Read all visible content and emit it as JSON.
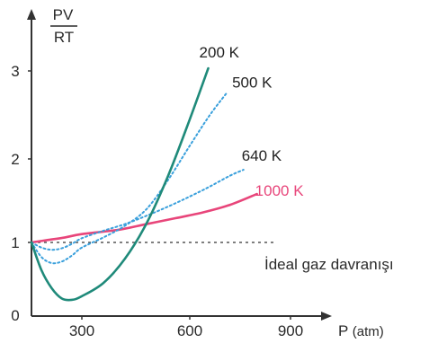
{
  "chart_data": {
    "type": "line",
    "y_label_numerator": "PV",
    "y_label_denominator": "RT",
    "xlabel_prefix": "P",
    "xlabel_unit": "(atm)",
    "xlim": [
      0,
      900
    ],
    "ylim": [
      0,
      3.5
    ],
    "x_ticks": [
      0,
      300,
      600,
      900
    ],
    "x_tick_labels": [
      "300",
      "600",
      "900"
    ],
    "y_ticks": [
      1,
      2,
      3
    ],
    "y_tick_labels": [
      "0",
      "1",
      "2",
      "3"
    ],
    "ideal_line": {
      "y": 1,
      "label": "İdeal gaz davranışı"
    },
    "series": [
      {
        "name": "200 K",
        "color": "#1f8a7a",
        "style": "solid",
        "points": [
          [
            0,
            1.0
          ],
          [
            60,
            0.62
          ],
          [
            120,
            0.38
          ],
          [
            180,
            0.24
          ],
          [
            240,
            0.22
          ],
          [
            300,
            0.27
          ],
          [
            360,
            0.45
          ],
          [
            420,
            0.78
          ],
          [
            480,
            1.23
          ],
          [
            540,
            1.8
          ],
          [
            600,
            2.45
          ],
          [
            655,
            3.03
          ]
        ]
      },
      {
        "name": "500 K",
        "color": "#3aa0dc",
        "style": "dotted",
        "points": [
          [
            0,
            1.0
          ],
          [
            60,
            0.8
          ],
          [
            120,
            0.72
          ],
          [
            180,
            0.74
          ],
          [
            240,
            0.82
          ],
          [
            300,
            0.93
          ],
          [
            360,
            1.06
          ],
          [
            420,
            1.2
          ],
          [
            480,
            1.4
          ],
          [
            540,
            1.75
          ],
          [
            600,
            2.15
          ],
          [
            660,
            2.5
          ],
          [
            710,
            2.75
          ]
        ]
      },
      {
        "name": "640 K",
        "color": "#3aa0dc",
        "style": "dotted",
        "points": [
          [
            0,
            1.0
          ],
          [
            60,
            0.93
          ],
          [
            120,
            0.9
          ],
          [
            180,
            0.92
          ],
          [
            240,
            0.98
          ],
          [
            300,
            1.05
          ],
          [
            360,
            1.14
          ],
          [
            420,
            1.22
          ],
          [
            480,
            1.32
          ],
          [
            540,
            1.43
          ],
          [
            600,
            1.55
          ],
          [
            660,
            1.67
          ],
          [
            720,
            1.8
          ],
          [
            760,
            1.87
          ]
        ]
      },
      {
        "name": "1000 K",
        "color": "#e8457a",
        "style": "solid",
        "points": [
          [
            0,
            1.0
          ],
          [
            100,
            1.03
          ],
          [
            200,
            1.06
          ],
          [
            300,
            1.1
          ],
          [
            400,
            1.15
          ],
          [
            480,
            1.22
          ],
          [
            560,
            1.29
          ],
          [
            640,
            1.36
          ],
          [
            720,
            1.45
          ],
          [
            800,
            1.58
          ]
        ]
      }
    ]
  }
}
